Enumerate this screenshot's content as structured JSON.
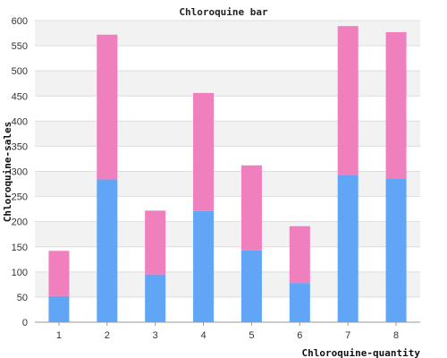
{
  "chart_data": {
    "type": "bar",
    "stacked": true,
    "title": "Chloroquine bar",
    "xlabel": "Chloroquine-quantity",
    "ylabel": "Chloroquine-sales",
    "categories": [
      "1",
      "2",
      "3",
      "4",
      "5",
      "6",
      "7",
      "8"
    ],
    "series": [
      {
        "color": "#60a5f6",
        "values": [
          52,
          284,
          95,
          221,
          143,
          78,
          292,
          286
        ]
      },
      {
        "color": "#f07fbd",
        "values": [
          90,
          288,
          127,
          235,
          169,
          113,
          297,
          291
        ]
      }
    ],
    "ylim": [
      0,
      600
    ],
    "yticks": [
      0,
      50,
      100,
      150,
      200,
      250,
      300,
      350,
      400,
      450,
      500,
      550,
      600
    ],
    "grid": true,
    "legend": "none"
  }
}
